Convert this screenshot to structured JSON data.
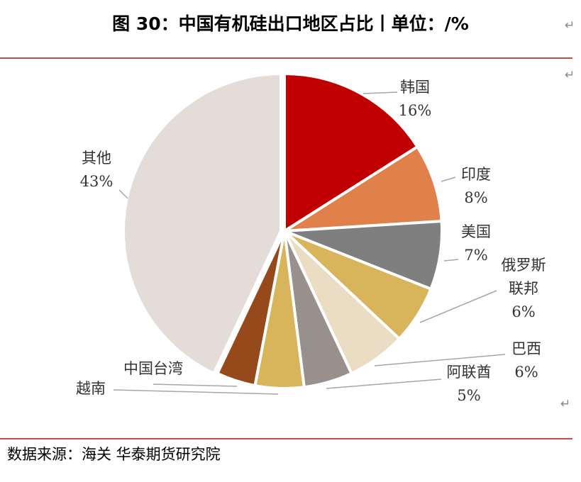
{
  "title": "图 30：中国有机硅出口地区占比丨单位：/%",
  "source": "数据来源：海关 华泰期货研究院",
  "return_mark": "↵",
  "chart_data": {
    "type": "pie",
    "slices": [
      {
        "label": "韩国",
        "value": 16,
        "value_label": "16%",
        "color": "#c00000"
      },
      {
        "label": "印度",
        "value": 8,
        "value_label": "8%",
        "color": "#e0804a"
      },
      {
        "label": "美国",
        "value": 7,
        "value_label": "7%",
        "color": "#7f7f7f"
      },
      {
        "label": "俄罗斯联邦",
        "value": 6,
        "value_label": "6%",
        "color": "#d8b45a"
      },
      {
        "label": "巴西",
        "value": 6,
        "value_label": "6%",
        "color": "#ebdcc4"
      },
      {
        "label": "阿联酋",
        "value": 5,
        "value_label": "5%",
        "color": "#98908c"
      },
      {
        "label": "越南",
        "value": 5,
        "value_label": "",
        "color": "#d8b45a"
      },
      {
        "label": "中国台湾",
        "value": 4,
        "value_label": "",
        "color": "#964a1c"
      },
      {
        "label": "其他",
        "value": 43,
        "value_label": "43%",
        "color": "#e4dcd8"
      }
    ]
  }
}
